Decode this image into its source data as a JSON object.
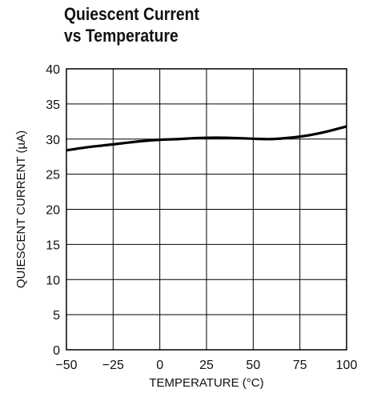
{
  "chart_data": {
    "type": "line",
    "title": [
      "Quiescent Current",
      "vs Temperature"
    ],
    "xlabel": "TEMPERATURE (°C)",
    "ylabel": "QUIESCENT CURRENT (µA)",
    "xlim": [
      -50,
      100
    ],
    "ylim": [
      0,
      40
    ],
    "xticks": [
      -50,
      -25,
      0,
      25,
      50,
      75,
      100
    ],
    "yticks": [
      0,
      5,
      10,
      15,
      20,
      25,
      30,
      35,
      40
    ],
    "xtick_labels": [
      "−50",
      "−25",
      "0",
      "25",
      "50",
      "75",
      "100"
    ],
    "ytick_labels": [
      "0",
      "5",
      "10",
      "15",
      "20",
      "25",
      "30",
      "35",
      "40"
    ],
    "grid": true,
    "series": [
      {
        "color": "#000000",
        "x": [
          -50,
          -40,
          -30,
          -20,
          -10,
          0,
          10,
          20,
          30,
          40,
          50,
          60,
          70,
          80,
          90,
          100
        ],
        "y": [
          28.4,
          28.8,
          29.1,
          29.4,
          29.7,
          29.9,
          30.0,
          30.15,
          30.2,
          30.15,
          30.05,
          30.0,
          30.2,
          30.55,
          31.1,
          31.8
        ]
      }
    ]
  }
}
